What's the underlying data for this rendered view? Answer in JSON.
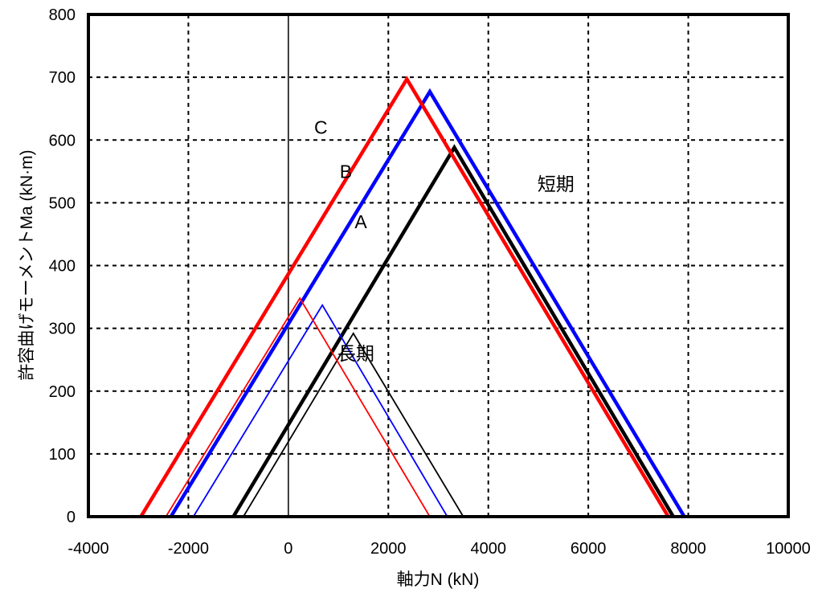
{
  "chart_data": {
    "type": "line",
    "title": "",
    "xlabel": "軸力N (kN)",
    "ylabel": "許容曲げモーメントMa (kN·m)",
    "xlim": [
      -4000,
      10000
    ],
    "ylim": [
      0,
      800
    ],
    "x_ticks": [
      "-4000",
      "-2000",
      "0",
      "2000",
      "4000",
      "6000",
      "8000",
      "10000"
    ],
    "y_ticks": [
      "0",
      "100",
      "200",
      "300",
      "400",
      "500",
      "600",
      "700",
      "800"
    ],
    "grid": true,
    "legend": "none",
    "series": [
      {
        "name": "A",
        "group": "短期",
        "color": "#000000",
        "x": [
          -1100,
          3320,
          7700
        ],
        "y": [
          0,
          588,
          0
        ]
      },
      {
        "name": "B",
        "group": "短期",
        "color": "#0000ff",
        "x": [
          -2350,
          2830,
          7920
        ],
        "y": [
          0,
          677,
          0
        ]
      },
      {
        "name": "C",
        "group": "短期",
        "color": "#ff0000",
        "x": [
          -2950,
          2370,
          7600
        ],
        "y": [
          0,
          697,
          0
        ]
      },
      {
        "name": "A",
        "group": "長期",
        "color": "#000000",
        "x": [
          -900,
          1300,
          3500
        ],
        "y": [
          0,
          292,
          0
        ]
      },
      {
        "name": "B",
        "group": "長期",
        "color": "#0000ff",
        "x": [
          -1900,
          680,
          3180
        ],
        "y": [
          0,
          337,
          0
        ]
      },
      {
        "name": "C",
        "group": "長期",
        "color": "#ff0000",
        "x": [
          -2450,
          230,
          2830
        ],
        "y": [
          0,
          348,
          0
        ]
      }
    ],
    "annotations": [
      {
        "text": "C",
        "x": 650,
        "y": 620
      },
      {
        "text": "B",
        "x": 1150,
        "y": 550
      },
      {
        "text": "A",
        "x": 1450,
        "y": 470
      },
      {
        "text": "短期",
        "x": 5350,
        "y": 530
      },
      {
        "text": "長期",
        "x": 1350,
        "y": 260
      }
    ]
  }
}
